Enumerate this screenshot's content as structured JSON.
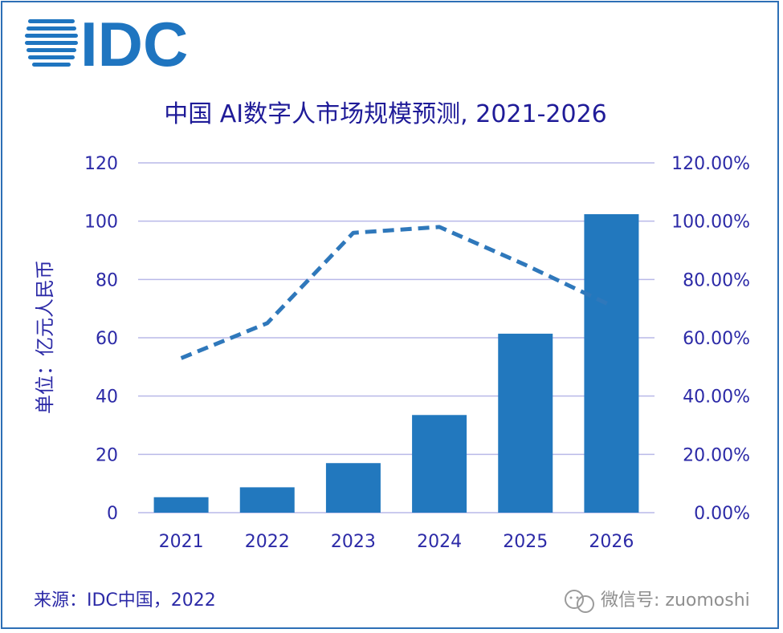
{
  "chart_data": {
    "type": "bar",
    "title": "中国 AI数字人市场规模预测, 2021-2026",
    "categories": [
      "2021",
      "2022",
      "2023",
      "2024",
      "2025",
      "2026"
    ],
    "series": [
      {
        "axis": "left",
        "type": "bar",
        "values": [
          5.3,
          8.7,
          17.0,
          33.5,
          61.4,
          102.4
        ]
      },
      {
        "axis": "right",
        "type": "line",
        "values": [
          0.53,
          0.65,
          0.96,
          0.98,
          0.85,
          0.71
        ]
      }
    ],
    "ylabel": "单位：亿元人民币",
    "ylim": [
      0,
      120
    ],
    "y_ticks": [
      "0",
      "20",
      "40",
      "60",
      "80",
      "100",
      "120"
    ],
    "y2lim": [
      0,
      1.2
    ],
    "y2_ticks": [
      "0.00%",
      "20.00%",
      "40.00%",
      "60.00%",
      "80.00%",
      "100.00%",
      "120.00%"
    ],
    "grid": true,
    "colors": {
      "bar": "#2278be",
      "line": "#2f78bb",
      "grid": "#b9b9e8",
      "text": "#2c2aa7",
      "title": "#1f1b98",
      "logo": "#1f75c0",
      "frame": "#2d6fb6"
    }
  },
  "logo": {
    "text": "IDC"
  },
  "source": "来源：IDC中国，2022",
  "watermark": "微信号: zuomoshi"
}
